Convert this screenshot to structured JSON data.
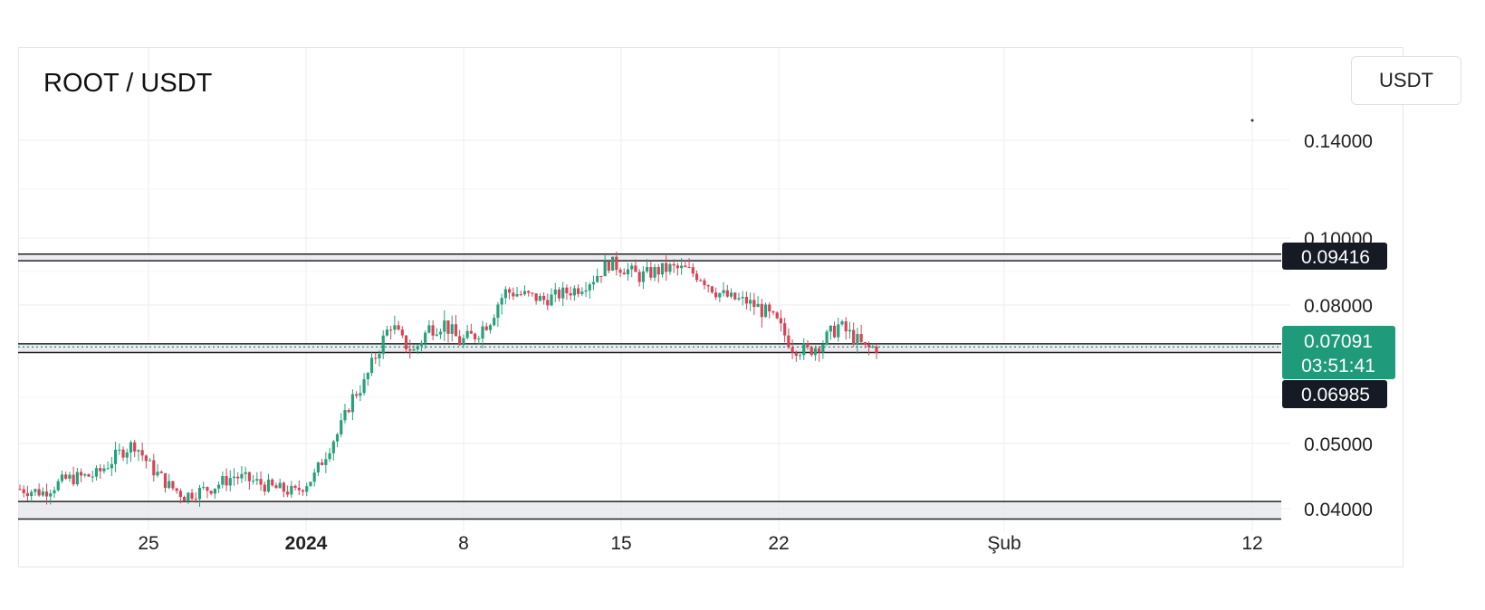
{
  "header": {
    "symbol": "ROOT / USDT",
    "currency_button": "USDT"
  },
  "colors": {
    "up": "#26a17b",
    "down": "#d64458",
    "label_dark": "#161a25",
    "label_green": "#1f9b7c",
    "band_fill": "#e4e6e9",
    "grid": "#eeeeee"
  },
  "chart_data": {
    "type": "candlestick",
    "title": "ROOT / USDT",
    "y_ticks": [
      {
        "value": 0.14,
        "label": "0.14000"
      },
      {
        "value": 0.1,
        "label": "0.10000"
      },
      {
        "value": 0.08,
        "label": "0.08000"
      },
      {
        "value": 0.05,
        "label": "0.05000"
      },
      {
        "value": 0.04,
        "label": "0.04000"
      }
    ],
    "ylim": [
      0.0375,
      0.155
    ],
    "x_ticks": [
      {
        "label": "25",
        "bold": false
      },
      {
        "label": "2024",
        "bold": true
      },
      {
        "label": "8",
        "bold": false
      },
      {
        "label": "15",
        "bold": false
      },
      {
        "label": "22",
        "bold": false
      },
      {
        "label": "Şub",
        "bold": false
      },
      {
        "label": "12",
        "bold": false
      }
    ],
    "price_labels": {
      "upper_level": "0.09416",
      "current_price": "0.07091",
      "countdown": "03:51:41",
      "lower_level": "0.06985"
    },
    "levels": {
      "current": 0.07091,
      "upper_band": [
        0.0932,
        0.0952
      ],
      "middle_band": [
        0.0697,
        0.0716
      ],
      "lower_band": [
        0.0384,
        0.0411
      ]
    },
    "path_points": [
      [
        0,
        0.043
      ],
      [
        6,
        0.0425
      ],
      [
        12,
        0.0445
      ],
      [
        20,
        0.0452
      ],
      [
        27,
        0.049
      ],
      [
        30,
        0.05
      ],
      [
        34,
        0.0465
      ],
      [
        39,
        0.0435
      ],
      [
        43,
        0.042
      ],
      [
        50,
        0.0432
      ],
      [
        56,
        0.045
      ],
      [
        62,
        0.044
      ],
      [
        66,
        0.0432
      ],
      [
        72,
        0.0425
      ],
      [
        77,
        0.045
      ],
      [
        83,
        0.052
      ],
      [
        87,
        0.06
      ],
      [
        90,
        0.063
      ],
      [
        93,
        0.069
      ],
      [
        97,
        0.076
      ],
      [
        100,
        0.072
      ],
      [
        103,
        0.07
      ],
      [
        107,
        0.075
      ],
      [
        111,
        0.076
      ],
      [
        115,
        0.072
      ],
      [
        119,
        0.0735
      ],
      [
        123,
        0.077
      ],
      [
        127,
        0.084
      ],
      [
        132,
        0.083
      ],
      [
        137,
        0.0815
      ],
      [
        142,
        0.0835
      ],
      [
        146,
        0.085
      ],
      [
        150,
        0.088
      ],
      [
        154,
        0.0925
      ],
      [
        158,
        0.091
      ],
      [
        162,
        0.0885
      ],
      [
        166,
        0.09
      ],
      [
        170,
        0.091
      ],
      [
        174,
        0.0905
      ],
      [
        178,
        0.0885
      ],
      [
        182,
        0.084
      ],
      [
        186,
        0.082
      ],
      [
        190,
        0.081
      ],
      [
        194,
        0.079
      ],
      [
        198,
        0.076
      ],
      [
        202,
        0.071
      ],
      [
        206,
        0.07
      ],
      [
        210,
        0.072
      ],
      [
        214,
        0.0755
      ],
      [
        218,
        0.073
      ],
      [
        221,
        0.0705
      ],
      [
        224,
        0.0709
      ]
    ]
  }
}
